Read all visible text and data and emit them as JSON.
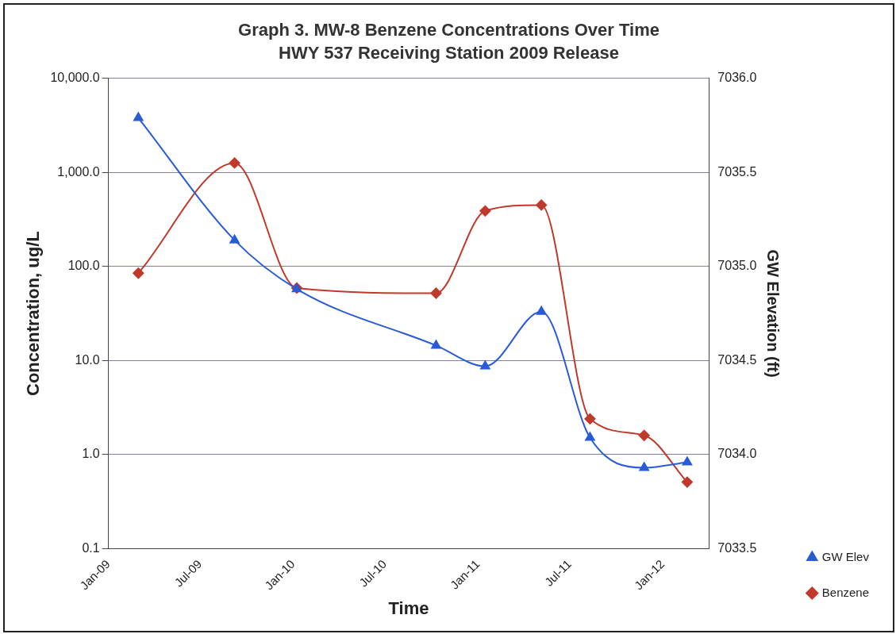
{
  "chart_data": {
    "type": "line",
    "title": "Graph 3. MW-8 Benzene Concentrations Over Time",
    "subtitle": "HWY 537 Receiving Station 2009 Release",
    "xlabel": "Time",
    "ylabel": "Concentration, ug/L",
    "y2label": "GW Elevation (ft)",
    "xlim": [
      "2009-01-01",
      "2012-04-01"
    ],
    "xticks": [
      {
        "value": "2009-01-01",
        "label": "Jan-09"
      },
      {
        "value": "2009-07-01",
        "label": "Jul-09"
      },
      {
        "value": "2010-01-01",
        "label": "Jan-10"
      },
      {
        "value": "2010-07-01",
        "label": "Jul-10"
      },
      {
        "value": "2011-01-01",
        "label": "Jan-11"
      },
      {
        "value": "2011-07-01",
        "label": "Jul-11"
      },
      {
        "value": "2012-01-01",
        "label": "Jan-12"
      }
    ],
    "ylim": [
      0.1,
      10000
    ],
    "yticks": [
      {
        "value": 0.1,
        "label": "0.1"
      },
      {
        "value": 1,
        "label": "1.0"
      },
      {
        "value": 10,
        "label": "10.0"
      },
      {
        "value": 100,
        "label": "100.0"
      },
      {
        "value": 1000,
        "label": "1,000.0"
      },
      {
        "value": 10000,
        "label": "10,000.0"
      }
    ],
    "y2lim": [
      7033.5,
      7036
    ],
    "y2ticks": [
      {
        "value": 7033.5,
        "label": "7033.5"
      },
      {
        "value": 7034,
        "label": "7034.0"
      },
      {
        "value": 7034.5,
        "label": "7034.5"
      },
      {
        "value": 7035,
        "label": "7035.0"
      },
      {
        "value": 7035.5,
        "label": "7035.5"
      },
      {
        "value": 7036,
        "label": "7036.0"
      }
    ],
    "log": "y",
    "grid": "y",
    "legend": "bottom right",
    "x": [
      "2009-03-01",
      "2009-09-07",
      "2010-01-08",
      "2010-10-10",
      "2011-01-15",
      "2011-05-06",
      "2011-08-10",
      "2011-11-25",
      "2012-02-18"
    ],
    "series": [
      {
        "name": "Benzene",
        "color": "#c0392b",
        "marker": "diamond",
        "values": [
          85,
          1260,
          59,
          52,
          390,
          450,
          2.4,
          1.6,
          0.51
        ]
      },
      {
        "name": "GW Elev",
        "color": "#2a5bd7",
        "marker": "triangle",
        "axis": "y2",
        "values": [
          7035.79,
          7035.14,
          7034.88,
          7034.58,
          7034.47,
          7034.76,
          7034.09,
          7033.93,
          7033.96
        ]
      }
    ]
  }
}
